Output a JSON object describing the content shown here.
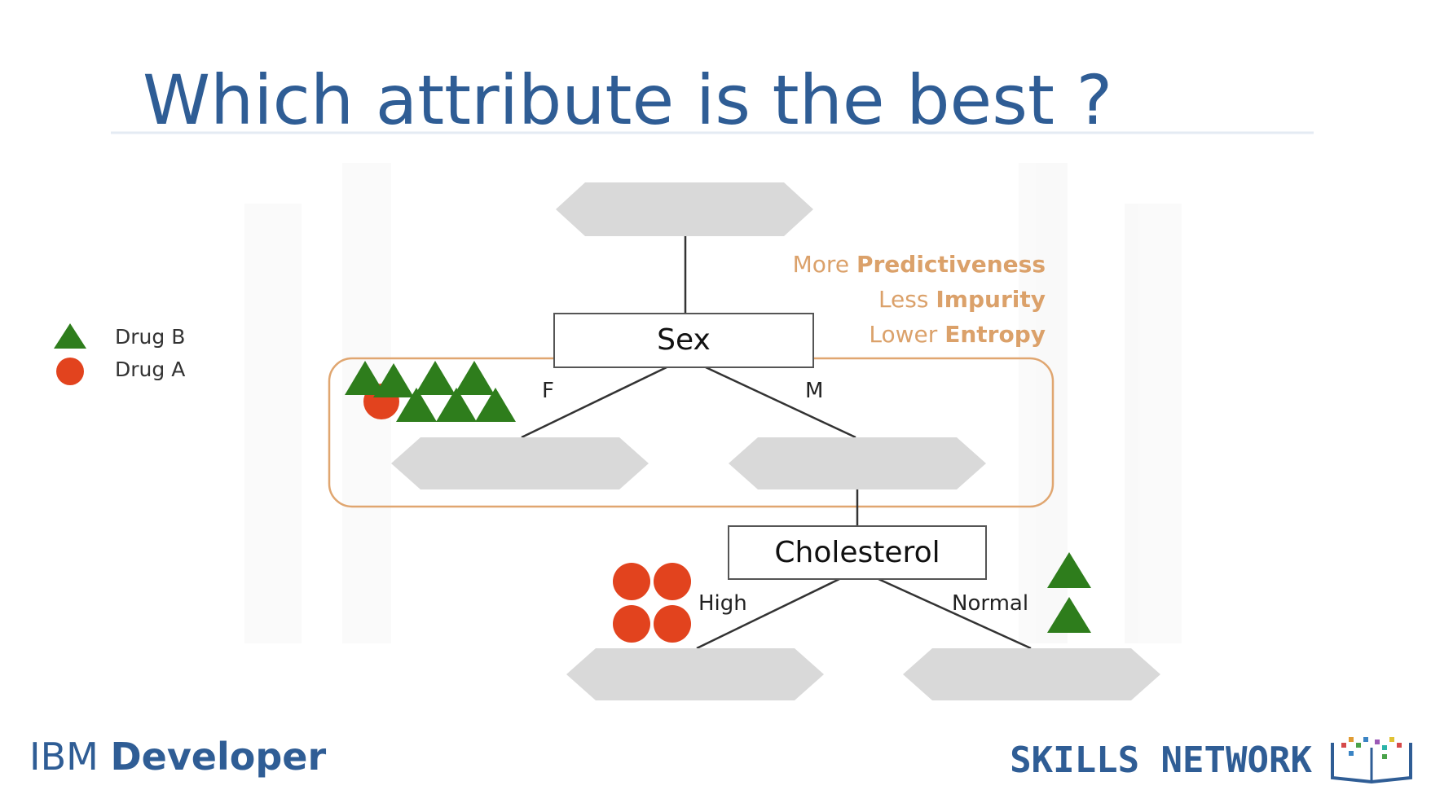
{
  "slide": {
    "title": "Which attribute is the best ?"
  },
  "colors": {
    "title": "#2f5d95",
    "node_fill": "#d9d9d9",
    "highlight_border": "#e0a670",
    "note_text": "#dba16a",
    "drug_b": "#2e7d1c",
    "drug_a": "#e2431e",
    "brand": "#2f5d95"
  },
  "legend": {
    "items": [
      {
        "shape": "triangle",
        "label": "Drug B"
      },
      {
        "shape": "circle",
        "label": "Drug A"
      }
    ]
  },
  "tree": {
    "sex_node": "Sex",
    "branch_f": "F",
    "branch_m": "M",
    "cholesterol_node": "Cholesterol",
    "branch_high": "High",
    "branch_normal": "Normal"
  },
  "notes": [
    {
      "prefix": "More ",
      "strong": "Predictiveness"
    },
    {
      "prefix": "Less ",
      "strong": "Impurity"
    },
    {
      "prefix": "Lower ",
      "strong": "Entropy"
    }
  ],
  "footer": {
    "brand_light": "IBM ",
    "brand_bold": "Developer",
    "network": "SKILLS NETWORK",
    "network_logo": "book-logo-icon"
  }
}
